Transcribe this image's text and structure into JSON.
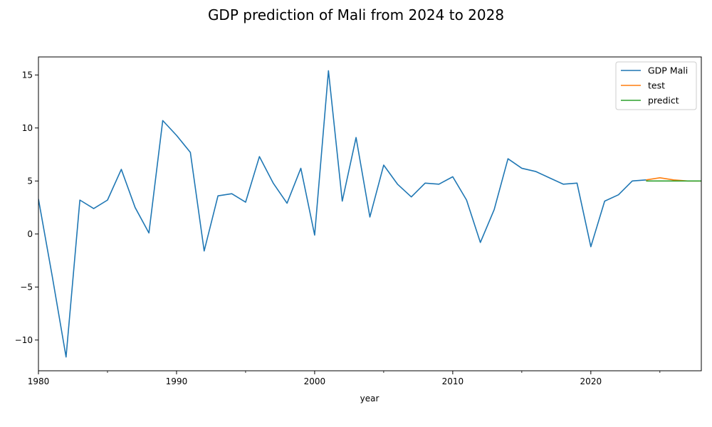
{
  "chart_data": {
    "type": "line",
    "title": "GDP prediction of Mali from 2024 to 2028",
    "xlabel": "year",
    "ylabel": "",
    "xlim": [
      1980,
      2028
    ],
    "ylim": [
      -12.9,
      16.7
    ],
    "xticks": [
      1980,
      1990,
      2000,
      2010,
      2020
    ],
    "xticks_minor": [
      1985,
      1995,
      2005,
      2015,
      2025
    ],
    "yticks": [
      -10,
      -5,
      0,
      5,
      10,
      15
    ],
    "ytick_labels": [
      "−10",
      "−5",
      "0",
      "5",
      "10",
      "15"
    ],
    "legend_position": "top-right",
    "grid": false,
    "series": [
      {
        "name": "GDP Mali",
        "color": "#1f77b4",
        "x": [
          1980,
          1981,
          1982,
          1983,
          1984,
          1985,
          1986,
          1987,
          1988,
          1989,
          1990,
          1991,
          1992,
          1993,
          1994,
          1995,
          1996,
          1997,
          1998,
          1999,
          2000,
          2001,
          2002,
          2003,
          2004,
          2005,
          2006,
          2007,
          2008,
          2009,
          2010,
          2011,
          2012,
          2013,
          2014,
          2015,
          2016,
          2017,
          2018,
          2019,
          2020,
          2021,
          2022,
          2023,
          2024
        ],
        "values": [
          3.3,
          -4.0,
          -11.6,
          3.2,
          2.4,
          3.2,
          6.1,
          2.5,
          0.1,
          10.7,
          9.3,
          7.7,
          -1.6,
          3.6,
          3.8,
          3.0,
          7.3,
          4.8,
          2.9,
          6.2,
          -0.1,
          15.4,
          3.1,
          9.1,
          1.6,
          6.5,
          4.7,
          3.5,
          4.8,
          4.7,
          5.4,
          3.2,
          -0.8,
          2.3,
          7.1,
          6.2,
          5.9,
          5.3,
          4.7,
          4.8,
          -1.2,
          3.1,
          3.7,
          5.0,
          5.1
        ]
      },
      {
        "name": "test",
        "color": "#ff7f0e",
        "x": [
          2024,
          2025,
          2026,
          2027,
          2028
        ],
        "values": [
          5.1,
          5.3,
          5.1,
          5.0,
          5.0
        ]
      },
      {
        "name": "predict",
        "color": "#2ca02c",
        "x": [
          2024,
          2025,
          2026,
          2027,
          2028
        ],
        "values": [
          5.0,
          5.0,
          5.0,
          5.0,
          5.0
        ]
      }
    ]
  }
}
